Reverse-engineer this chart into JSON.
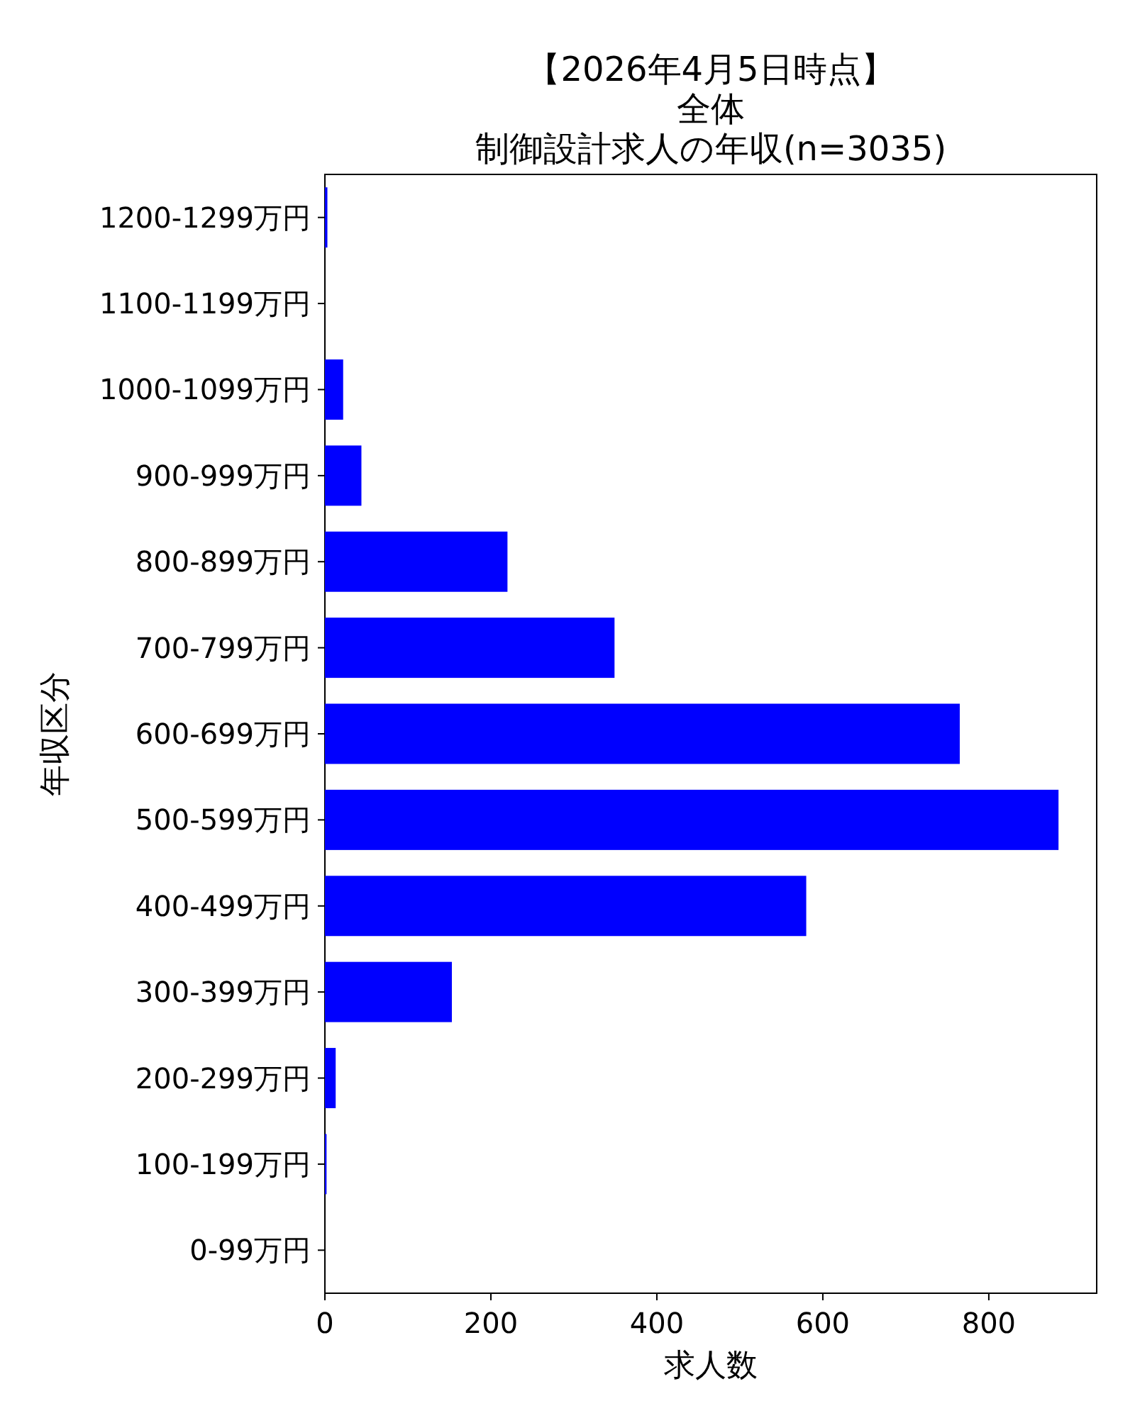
{
  "chart_data": {
    "type": "bar",
    "orientation": "horizontal",
    "annotations": [
      "【2026年4月5日時点】",
      "全体"
    ],
    "title": "制御設計求人の年収(n=3035)",
    "xlabel": "求人数",
    "ylabel": "年収区分",
    "categories": [
      "1200-1299万円",
      "1100-1199万円",
      "1000-1099万円",
      "900-999万円",
      "800-899万円",
      "700-799万円",
      "600-699万円",
      "500-599万円",
      "400-499万円",
      "300-399万円",
      "200-299万円",
      "100-199万円",
      "0-99万円"
    ],
    "values": [
      3,
      0,
      22,
      44,
      220,
      349,
      765,
      884,
      580,
      153,
      13,
      2,
      0
    ],
    "color": "#0000ff",
    "xlim": [
      0,
      930
    ],
    "xticks": [
      0,
      200,
      400,
      600,
      800
    ],
    "grid": false
  }
}
